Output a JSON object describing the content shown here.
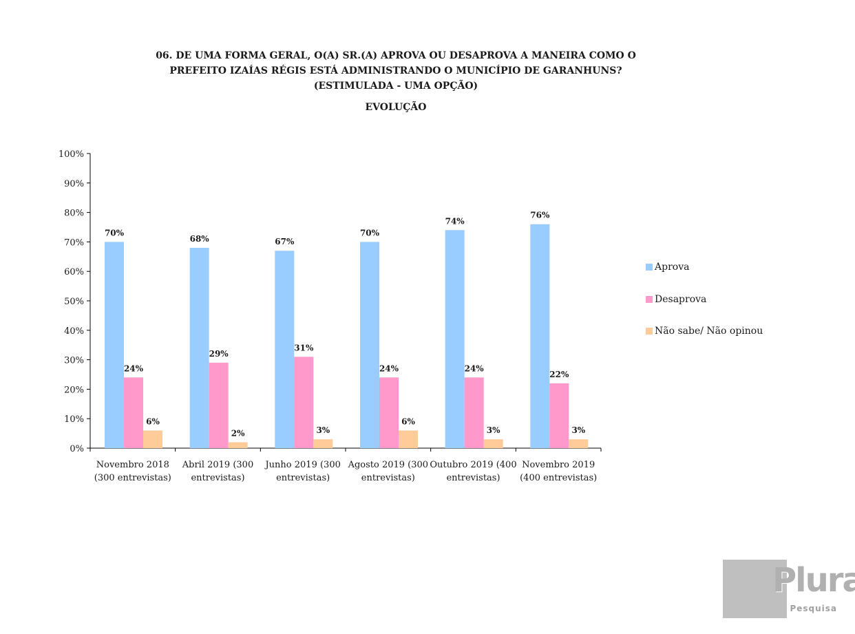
{
  "header": {
    "title_lines": [
      "06. DE UMA FORMA GERAL, O(A) SR.(A) APROVA OU DESAPROVA A MANEIRA COMO O",
      "PREFEITO IZAÍAS RÉGIS ESTÁ ADMINISTRANDO O MUNICÍPIO DE GARANHUNS?",
      "(ESTIMULADA - UMA OPÇÃO)"
    ],
    "subtitle": "EVOLUÇÃO"
  },
  "chart_data": {
    "type": "bar",
    "categories": [
      [
        "Novembro 2018",
        "(300 entrevistas)"
      ],
      [
        "Abril 2019 (300",
        "entrevistas)"
      ],
      [
        "Junho 2019 (300",
        "entrevistas)"
      ],
      [
        "Agosto 2019 (300",
        "entrevistas)"
      ],
      [
        "Outubro 2019 (400",
        "entrevistas)"
      ],
      [
        "Novembro 2019",
        "(400 entrevistas)"
      ]
    ],
    "series": [
      {
        "name": "Aprova",
        "color": "#99ccff",
        "values": [
          70,
          68,
          67,
          70,
          74,
          76
        ],
        "labels": [
          "70%",
          "68%",
          "67%",
          "70%",
          "74%",
          "76%"
        ]
      },
      {
        "name": "Desaprova",
        "color": "#ff99cc",
        "values": [
          24,
          29,
          31,
          24,
          24,
          22
        ],
        "labels": [
          "24%",
          "29%",
          "31%",
          "24%",
          "24%",
          "22%"
        ]
      },
      {
        "name": "Não sabe/ Não opinou",
        "color": "#ffcc99",
        "values": [
          6,
          2,
          3,
          6,
          3,
          3
        ],
        "labels": [
          "6%",
          "2%",
          "3%",
          "6%",
          "3%",
          "3%"
        ]
      }
    ],
    "y_ticks": [
      "0%",
      "10%",
      "20%",
      "30%",
      "40%",
      "50%",
      "60%",
      "70%",
      "80%",
      "90%",
      "100%"
    ],
    "ylim": [
      0,
      100
    ],
    "legend_position": "right",
    "grid": false
  },
  "logo": {
    "name": "Plural",
    "tagline": "Pesquisa"
  }
}
